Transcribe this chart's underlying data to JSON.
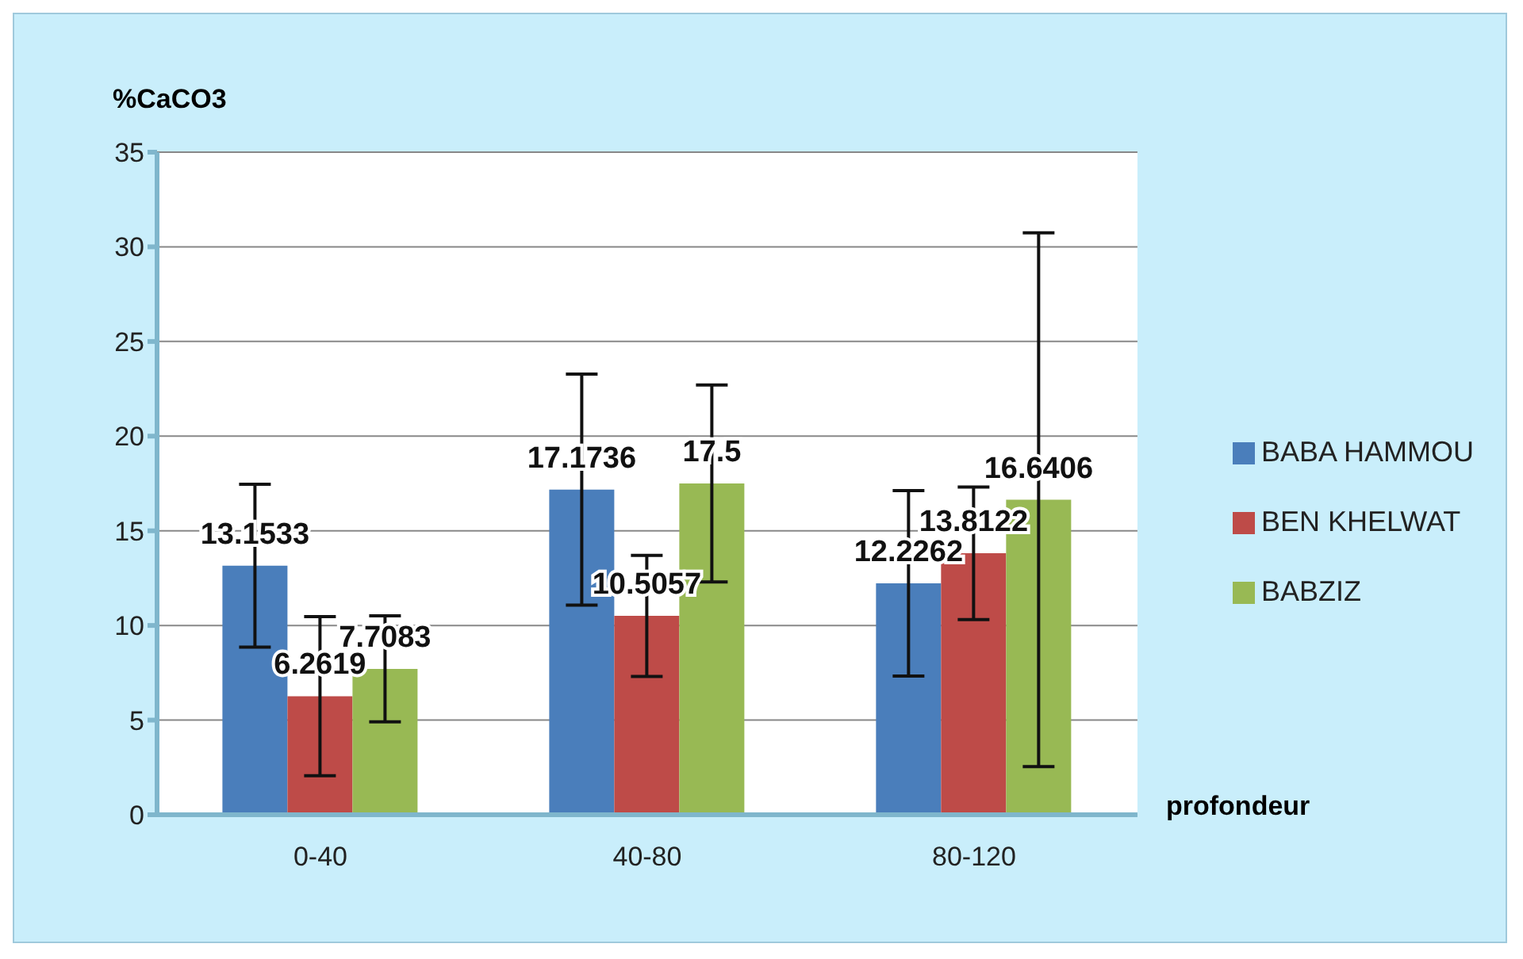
{
  "chart_data": {
    "type": "bar",
    "ylabel": "%CaCO3",
    "xlabel": "profondeur",
    "categories": [
      "0-40",
      "40-80",
      "80-120"
    ],
    "series": [
      {
        "name": "BABA HAMMOU",
        "color": "#4a7ebb",
        "values": [
          13.1533,
          17.1736,
          12.2262
        ],
        "errors": [
          4.3,
          6.1,
          4.9
        ]
      },
      {
        "name": "BEN KHELWAT",
        "color": "#be4b48",
        "values": [
          6.2619,
          10.5057,
          13.8122
        ],
        "errors": [
          4.2,
          3.2,
          3.5
        ]
      },
      {
        "name": "BABZIZ",
        "color": "#98b954",
        "values": [
          7.7083,
          17.5,
          16.6406
        ],
        "errors": [
          2.8,
          5.2,
          14.1
        ]
      }
    ],
    "ylim": [
      0,
      35
    ],
    "yticks": [
      0,
      5,
      10,
      15,
      20,
      25,
      30,
      35
    ],
    "grid": "y",
    "legend": "right",
    "data_labels": true
  }
}
